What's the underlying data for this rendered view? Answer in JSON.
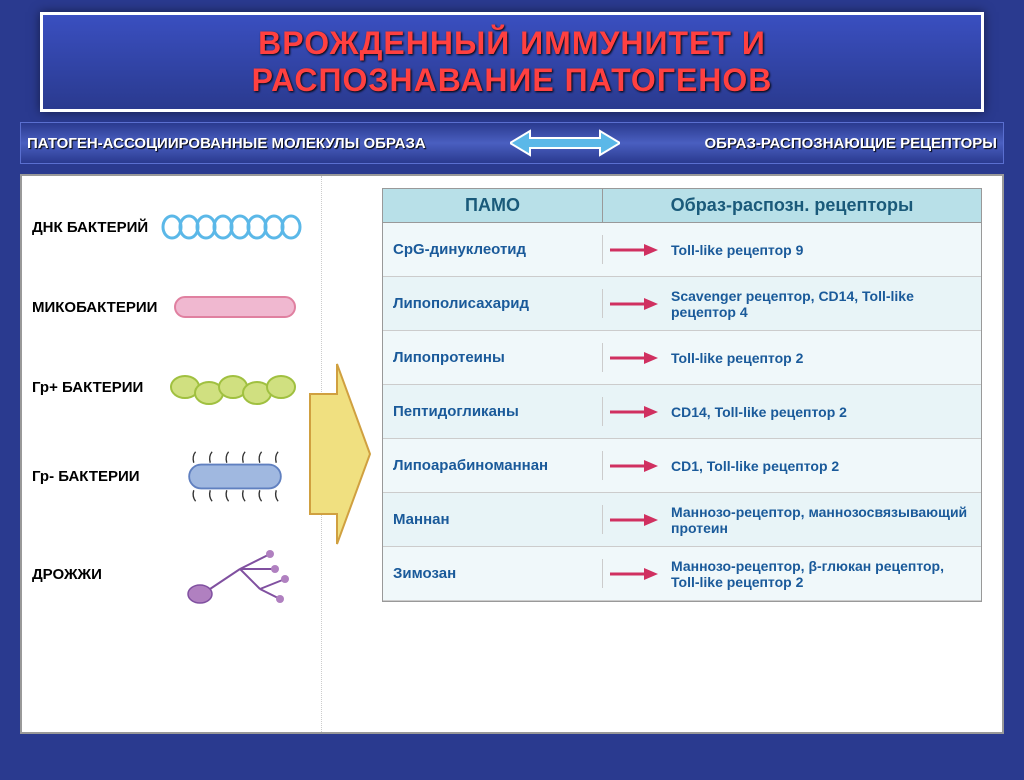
{
  "title_line1": "ВРОЖДЕННЫЙ ИММУНИТЕТ И",
  "title_line2": "РАСПОЗНАВАНИЕ ПАТОГЕНОВ",
  "subtitle_left": "ПАТОГЕН-АССОЦИИРОВАННЫЕ МОЛЕКУЛЫ ОБРАЗА",
  "subtitle_right": "ОБРАЗ-РАСПОЗНАЮЩИЕ РЕЦЕПТОРЫ",
  "pathogens": [
    {
      "label": "ДНК БАКТЕРИЙ",
      "type": "dna",
      "colors": [
        "#5bb8e8",
        "#e080a0"
      ]
    },
    {
      "label": "МИКОБАКТЕРИИ",
      "type": "mycobacteria",
      "colors": [
        "#f0b8d0",
        "#e080a0"
      ]
    },
    {
      "label": "Гр+ БАКТЕРИИ",
      "type": "grpos",
      "colors": [
        "#d0e080",
        "#a0c040"
      ]
    },
    {
      "label": "Гр- БАКТЕРИИ",
      "type": "grneg",
      "colors": [
        "#a0b8e0",
        "#6080c0"
      ]
    },
    {
      "label": "ДРОЖЖИ",
      "type": "yeast",
      "colors": [
        "#b080c0",
        "#8050a0"
      ]
    }
  ],
  "table_header_left": "ПАМО",
  "table_header_right": "Образ-распозн. рецепторы",
  "table_rows": [
    {
      "pamo": "CpG-динуклеотид",
      "receptor": "Toll-like рецептор 9"
    },
    {
      "pamo": "Липополисахарид",
      "receptor": "Scavenger рецептор, CD14, Toll-like рецептор 4"
    },
    {
      "pamo": "Липопротеины",
      "receptor": "Toll-like рецептор 2"
    },
    {
      "pamo": "Пептидогликаны",
      "receptor": "CD14, Toll-like рецептор 2"
    },
    {
      "pamo": "Липоарабиноманнан",
      "receptor": "CD1, Toll-like рецептор 2"
    },
    {
      "pamo": "Маннан",
      "receptor": "Маннозо-рецептор, маннозосвязывающий протеин"
    },
    {
      "pamo": "Зимозан",
      "receptor": "Маннозо-рецептор, β-глюкан рецептор, Toll-like рецептор 2"
    }
  ],
  "arrow_color": "#d03060",
  "big_arrow_fill": "#f0e080",
  "big_arrow_stroke": "#d0a040",
  "bidir_arrow_fill": "#5bb8e8",
  "bidir_arrow_stroke": "#ffffff"
}
